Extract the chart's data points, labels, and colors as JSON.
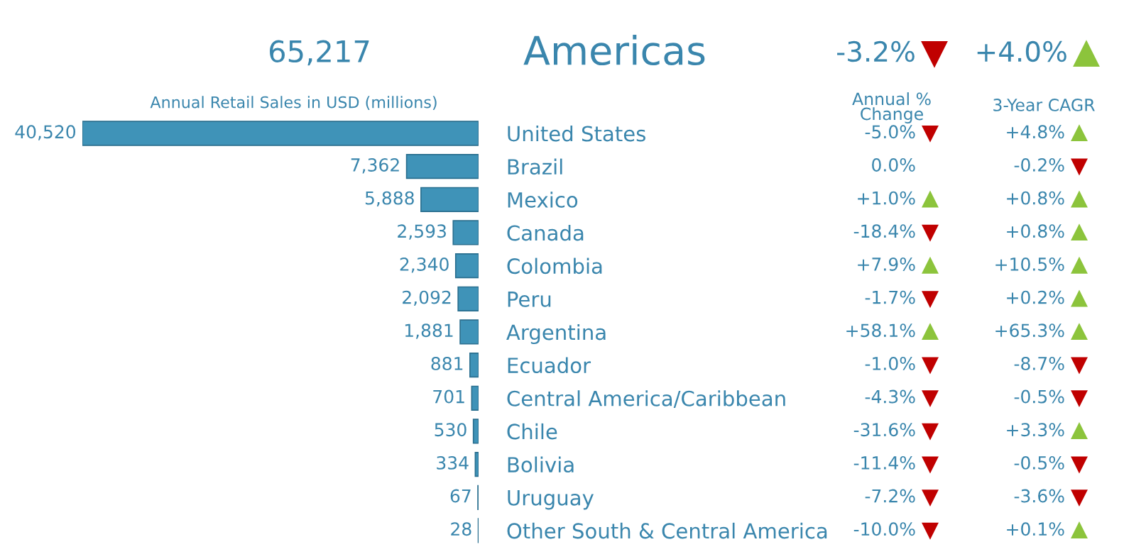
{
  "chart_data": {
    "type": "bar",
    "orientation": "horizontal",
    "title": "Americas",
    "value_labels": [
      "40,520",
      "7,362",
      "5,888",
      "2,593",
      "2,340",
      "2,092",
      "1,881",
      "881",
      "701",
      "530",
      "334",
      "67",
      "28"
    ],
    "color": "#3f93b8",
    "categories": [
      "United States",
      "Brazil",
      "Mexico",
      "Canada",
      "Colombia",
      "Peru",
      "Argentina",
      "Ecuador",
      "Central America/Caribbean",
      "Chile",
      "Bolivia",
      "Uruguay",
      "Other South & Central America"
    ],
    "values": [
      40520,
      7362,
      5888,
      2593,
      2340,
      2092,
      1881,
      881,
      701,
      530,
      334,
      67,
      28
    ],
    "annotations": [
      "65,217",
      "Annual Retail Sales in USD (millions)",
      "-3.2%",
      "+4.0%",
      "Annual %\nChange",
      "3-Year CAGR",
      "-5.0%",
      "+4.8%",
      "0.0%",
      "-0.2%",
      "+1.0%",
      "+0.8%",
      "-18.4%",
      "+0.8%",
      "+7.9%",
      "+10.5%",
      "-1.7%",
      "+0.2%",
      "+58.1%",
      "+65.3%",
      "-1.0%",
      "-8.7%",
      "-4.3%",
      "-0.5%",
      "-31.6%",
      "+3.3%",
      "-11.4%",
      "-0.5%",
      "-7.2%",
      "-3.6%",
      "-10.0%",
      "+0.1%"
    ]
  }
}
